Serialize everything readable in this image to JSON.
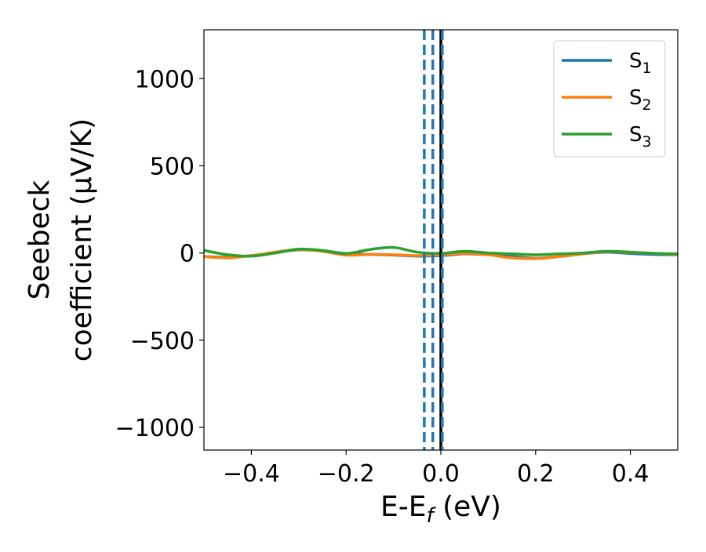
{
  "chart_data": {
    "type": "line",
    "title": "",
    "xlabel": {
      "base": "E-E",
      "sub": "f",
      "suffix": " (eV)"
    },
    "ylabel": {
      "line1": "Seebeck",
      "line2": "coefficient  (μV/K)"
    },
    "xlim": [
      -0.5,
      0.5
    ],
    "ylim": [
      -1130,
      1280
    ],
    "xticks": [
      -0.4,
      -0.2,
      0.0,
      0.2,
      0.4
    ],
    "xtick_labels": [
      "−0.4",
      "−0.2",
      "0.0",
      "0.2",
      "0.4"
    ],
    "yticks": [
      -1000,
      -500,
      0,
      500,
      1000
    ],
    "ytick_labels": [
      "−1000",
      "−500",
      "0",
      "500",
      "1000"
    ],
    "grid": false,
    "legend": {
      "position": "top-right",
      "entries": [
        {
          "base": "S",
          "sub": "1",
          "color": "#1f77b4"
        },
        {
          "base": "S",
          "sub": "2",
          "color": "#ff7f0e"
        },
        {
          "base": "S",
          "sub": "3",
          "color": "#2ca02c"
        }
      ]
    },
    "x": [
      -0.5,
      -0.45,
      -0.4,
      -0.35,
      -0.3,
      -0.25,
      -0.2,
      -0.15,
      -0.1,
      -0.05,
      0.0,
      0.05,
      0.1,
      0.15,
      0.2,
      0.25,
      0.3,
      0.35,
      0.4,
      0.45,
      0.5
    ],
    "series": [
      {
        "color": "#1f77b4",
        "values": [
          -20,
          -25,
          -15,
          2,
          18,
          12,
          -3,
          -8,
          -12,
          -18,
          -15,
          -5,
          -10,
          -20,
          -30,
          -20,
          -5,
          5,
          -3,
          -8,
          -10
        ]
      },
      {
        "color": "#ff7f0e",
        "values": [
          -20,
          -28,
          -15,
          5,
          20,
          10,
          -12,
          -8,
          -10,
          -15,
          -10,
          -3,
          -10,
          -28,
          -32,
          -20,
          -5,
          8,
          3,
          -2,
          -8
        ]
      },
      {
        "color": "#2ca02c",
        "values": [
          15,
          -10,
          -18,
          0,
          22,
          15,
          -3,
          20,
          32,
          5,
          -2,
          10,
          0,
          -5,
          -10,
          -5,
          0,
          10,
          5,
          -2,
          -5
        ]
      }
    ],
    "vlines": [
      {
        "x": -0.035,
        "color": "#1f77b4",
        "style": "dashed"
      },
      {
        "x": -0.017,
        "color": "#1f77b4",
        "style": "dashed"
      },
      {
        "x": 0.0,
        "color": "#000000",
        "style": "solid"
      },
      {
        "x": 0.003,
        "color": "#1f77b4",
        "style": "dashed"
      }
    ]
  }
}
